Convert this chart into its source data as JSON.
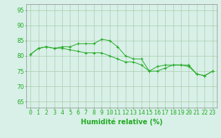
{
  "x": [
    0,
    1,
    2,
    3,
    4,
    5,
    6,
    7,
    8,
    9,
    10,
    11,
    12,
    13,
    14,
    15,
    16,
    17,
    18,
    19,
    20,
    21,
    22,
    23
  ],
  "series1": [
    80.5,
    82.5,
    83,
    82.5,
    83,
    83,
    84,
    84,
    84,
    85.5,
    85,
    83,
    80,
    79,
    79,
    75,
    76.5,
    77,
    77,
    77,
    76.5,
    74,
    73.5,
    75
  ],
  "series2": [
    80.5,
    82.5,
    83,
    82.5,
    82.5,
    82,
    81.5,
    81,
    81,
    81,
    80,
    79,
    78,
    78,
    77,
    75,
    75,
    76,
    77,
    77,
    77,
    74,
    73.5,
    75
  ],
  "line_color": "#22aa22",
  "marker": "+",
  "background_color": "#d8f0e8",
  "grid_color": "#aaccaa",
  "xlabel": "Humidité relative (%)",
  "ylabel_ticks": [
    65,
    70,
    75,
    80,
    85,
    90,
    95
  ],
  "ylim": [
    63,
    97
  ],
  "xlim": [
    -0.5,
    23.5
  ],
  "xlabel_color": "#22aa22",
  "tick_color": "#22aa22",
  "axis_color": "#888888",
  "xlabel_fontsize": 7,
  "tick_fontsize": 6
}
